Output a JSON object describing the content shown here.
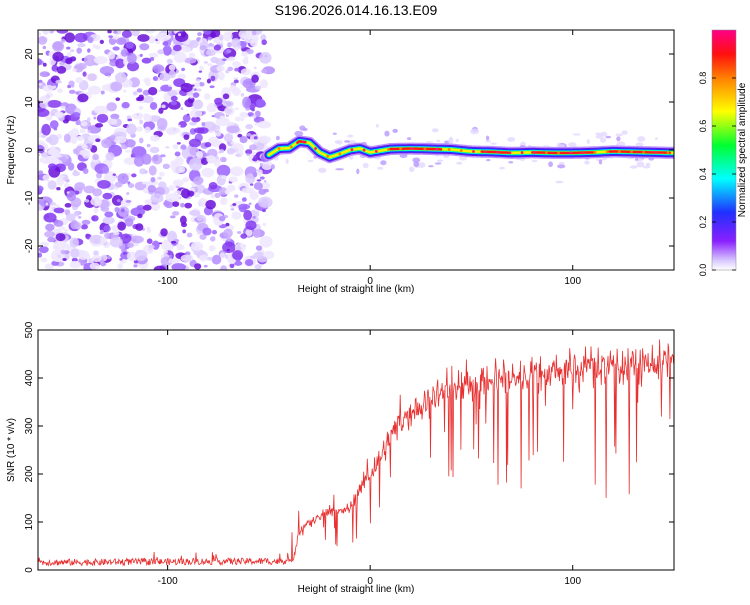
{
  "title": "S196.2026.014.16.13.E09",
  "chart_data": [
    {
      "type": "heatmap",
      "name": "spectrogram",
      "xlabel": "Height of straight line (km)",
      "ylabel": "Frequency (Hz)",
      "xlim": [
        -164,
        150
      ],
      "ylim": [
        -25,
        25
      ],
      "x_ticks": [
        -100,
        0,
        100
      ],
      "y_ticks": [
        -20,
        -10,
        0,
        10,
        20
      ],
      "colorbar": {
        "label": "Normalized spectral amplitude",
        "range": [
          0,
          1
        ],
        "ticks": [
          0.0,
          0.2,
          0.4,
          0.6,
          0.8
        ],
        "colors": [
          "#ffffff",
          "#c8a8ff",
          "#7a00ff",
          "#2020ff",
          "#00ffff",
          "#00ff00",
          "#ffff00",
          "#ff8000",
          "#ff0000",
          "#ff0080"
        ]
      },
      "noise_region_x": [
        -164,
        -50
      ],
      "signal_track": {
        "x": [
          -50,
          -45,
          -40,
          -35,
          -30,
          -25,
          -20,
          -15,
          -10,
          -5,
          0,
          10,
          20,
          30,
          40,
          50,
          60,
          70,
          80,
          90,
          100,
          110,
          120,
          130,
          140,
          150
        ],
        "frequency": [
          -1,
          0.3,
          0.4,
          1.8,
          1.5,
          -0.5,
          -1.5,
          -0.8,
          0,
          0.3,
          -0.5,
          0.2,
          0.3,
          0.2,
          0.1,
          -0.3,
          -0.4,
          -0.6,
          -0.5,
          -0.6,
          -0.6,
          -0.5,
          -0.3,
          -0.4,
          -0.5,
          -0.6
        ]
      }
    },
    {
      "type": "line",
      "name": "snr",
      "xlabel": "Height of straight line (km)",
      "ylabel": "SNR (10 * v/v)",
      "xlim": [
        -164,
        150
      ],
      "ylim": [
        0,
        500
      ],
      "x_ticks": [
        -100,
        0,
        100
      ],
      "y_ticks": [
        0,
        100,
        200,
        300,
        400,
        500
      ],
      "color": "#e83030",
      "x": [
        -164,
        -140,
        -120,
        -100,
        -80,
        -60,
        -45,
        -38,
        -35,
        -30,
        -25,
        -20,
        -15,
        -10,
        -5,
        0,
        5,
        10,
        15,
        20,
        25,
        30,
        35,
        40,
        50,
        60,
        70,
        80,
        90,
        100,
        110,
        120,
        130,
        140,
        150
      ],
      "y": [
        15,
        15,
        16,
        16,
        17,
        17,
        17,
        20,
        80,
        100,
        110,
        125,
        120,
        130,
        170,
        200,
        230,
        280,
        310,
        330,
        340,
        360,
        370,
        375,
        385,
        395,
        400,
        405,
        415,
        420,
        425,
        428,
        430,
        432,
        435
      ]
    }
  ]
}
